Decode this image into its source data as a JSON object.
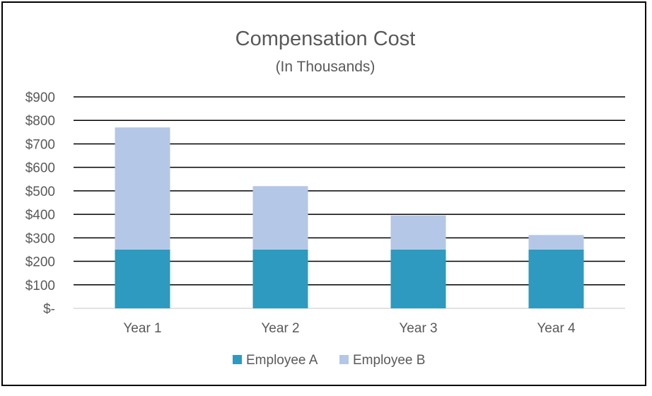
{
  "chart_data": {
    "type": "bar",
    "stacked": true,
    "title": "Compensation Cost",
    "subtitle": "(In Thousands)",
    "xlabel": "",
    "ylabel": "",
    "categories": [
      "Year 1",
      "Year 2",
      "Year 3",
      "Year 4"
    ],
    "y_ticks": [
      "$-",
      "$100",
      "$200",
      "$300",
      "$400",
      "$500",
      "$600",
      "$700",
      "$800",
      "$900"
    ],
    "ylim": [
      0,
      900
    ],
    "grid": true,
    "legend_position": "bottom",
    "series": [
      {
        "name": "Employee A",
        "color": "#2e9abf",
        "values": [
          250,
          250,
          250,
          250
        ]
      },
      {
        "name": "Employee B",
        "color": "#b5c7e6",
        "values": [
          520,
          270,
          145,
          62
        ]
      }
    ]
  }
}
